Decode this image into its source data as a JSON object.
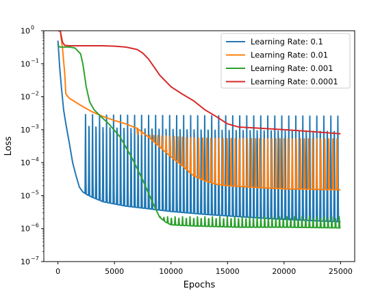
{
  "chart_data": {
    "type": "line",
    "title": "",
    "xlabel": "Epochs",
    "ylabel": "Loss",
    "xlim": [
      -1250,
      26250
    ],
    "ylim_log10": [
      -7,
      0
    ],
    "yscale": "log",
    "grid": false,
    "legend_position": "top-right",
    "x_ticks": [
      0,
      5000,
      10000,
      15000,
      20000,
      25000
    ],
    "x_tick_labels": [
      "0",
      "5000",
      "10000",
      "15000",
      "20000",
      "25000"
    ],
    "y_tick_exponents": [
      0,
      -1,
      -2,
      -3,
      -4,
      -5,
      -6,
      -7
    ],
    "y_tick_labels": [
      "10",
      "10",
      "10",
      "10",
      "10",
      "10",
      "10",
      "10"
    ],
    "y_tick_label_exponents": [
      "0",
      "−1",
      "−2",
      "−3",
      "−4",
      "−5",
      "−6",
      "−7"
    ],
    "series": [
      {
        "name": "Learning Rate: 0.1",
        "color": "#1f77b4",
        "x": [
          0,
          150,
          300,
          500,
          700,
          1000,
          1300,
          1600,
          1900,
          2200,
          2500,
          3000,
          4000,
          6000,
          8000,
          10000,
          13000,
          16000,
          20000,
          25000
        ],
        "y": [
          0.5,
          0.08,
          0.02,
          0.004,
          0.0015,
          0.0004,
          0.0001,
          4e-05,
          1.8e-05,
          1.3e-05,
          1.1e-05,
          9e-06,
          6.5e-06,
          4.8e-06,
          4e-06,
          3.3e-06,
          2.7e-06,
          2.3e-06,
          1.9e-06,
          1.6e-06
        ],
        "oscillation": {
          "start": 2400,
          "end": 25000,
          "period": 310,
          "peak": 0.004
        }
      },
      {
        "name": "Learning Rate: 0.01",
        "color": "#ff7f0e",
        "x": [
          0,
          200,
          400,
          600,
          700,
          1000,
          2000,
          3000,
          4000,
          5000,
          6000,
          7000,
          8000,
          9000,
          10000,
          11000,
          12000,
          13000,
          14000,
          15000,
          17000,
          20000,
          25000
        ],
        "y": [
          1.0,
          1.0,
          0.3,
          0.05,
          0.012,
          0.009,
          0.0055,
          0.0035,
          0.0025,
          0.0019,
          0.0015,
          0.0011,
          0.0006,
          0.0003,
          0.00015,
          8e-05,
          4e-05,
          2.8e-05,
          2.2e-05,
          2e-05,
          1.8e-05,
          1.6e-05,
          1.5e-05
        ],
        "oscillation": {
          "start": 7000,
          "end": 25000,
          "period": 360,
          "peak": 0.0007
        }
      },
      {
        "name": "Learning Rate: 0.001",
        "color": "#2ca02c",
        "x": [
          0,
          200,
          500,
          1000,
          1500,
          2000,
          2200,
          2500,
          2800,
          3200,
          3800,
          4500,
          5500,
          6500,
          7500,
          8000,
          8500,
          9000,
          9500,
          10000,
          12000,
          16000,
          20000,
          25000
        ],
        "y": [
          0.35,
          0.32,
          0.32,
          0.32,
          0.3,
          0.2,
          0.1,
          0.02,
          0.007,
          0.004,
          0.0025,
          0.0015,
          0.0006,
          0.00015,
          3e-05,
          1.2e-05,
          5e-06,
          2.2e-06,
          1.6e-06,
          1.3e-06,
          1.2e-06,
          1.1e-06,
          1.1e-06,
          1.05e-06
        ],
        "oscillation": {
          "start": 9000,
          "end": 25000,
          "period": 330,
          "peak": 2.3e-06
        }
      },
      {
        "name": "Learning Rate: 0.0001",
        "color": "#d62728",
        "x": [
          0,
          200,
          400,
          600,
          1000,
          2000,
          4000,
          5000,
          6000,
          7000,
          7500,
          8000,
          8500,
          9000,
          10000,
          11000,
          12000,
          13000,
          14000,
          15000,
          16000,
          18000,
          20000,
          22000,
          25000
        ],
        "y": [
          1.0,
          1.0,
          0.45,
          0.36,
          0.35,
          0.35,
          0.35,
          0.34,
          0.32,
          0.27,
          0.21,
          0.14,
          0.08,
          0.045,
          0.02,
          0.012,
          0.0075,
          0.004,
          0.0025,
          0.0015,
          0.0012,
          0.0011,
          0.001,
          0.0009,
          0.00075
        ]
      }
    ]
  }
}
